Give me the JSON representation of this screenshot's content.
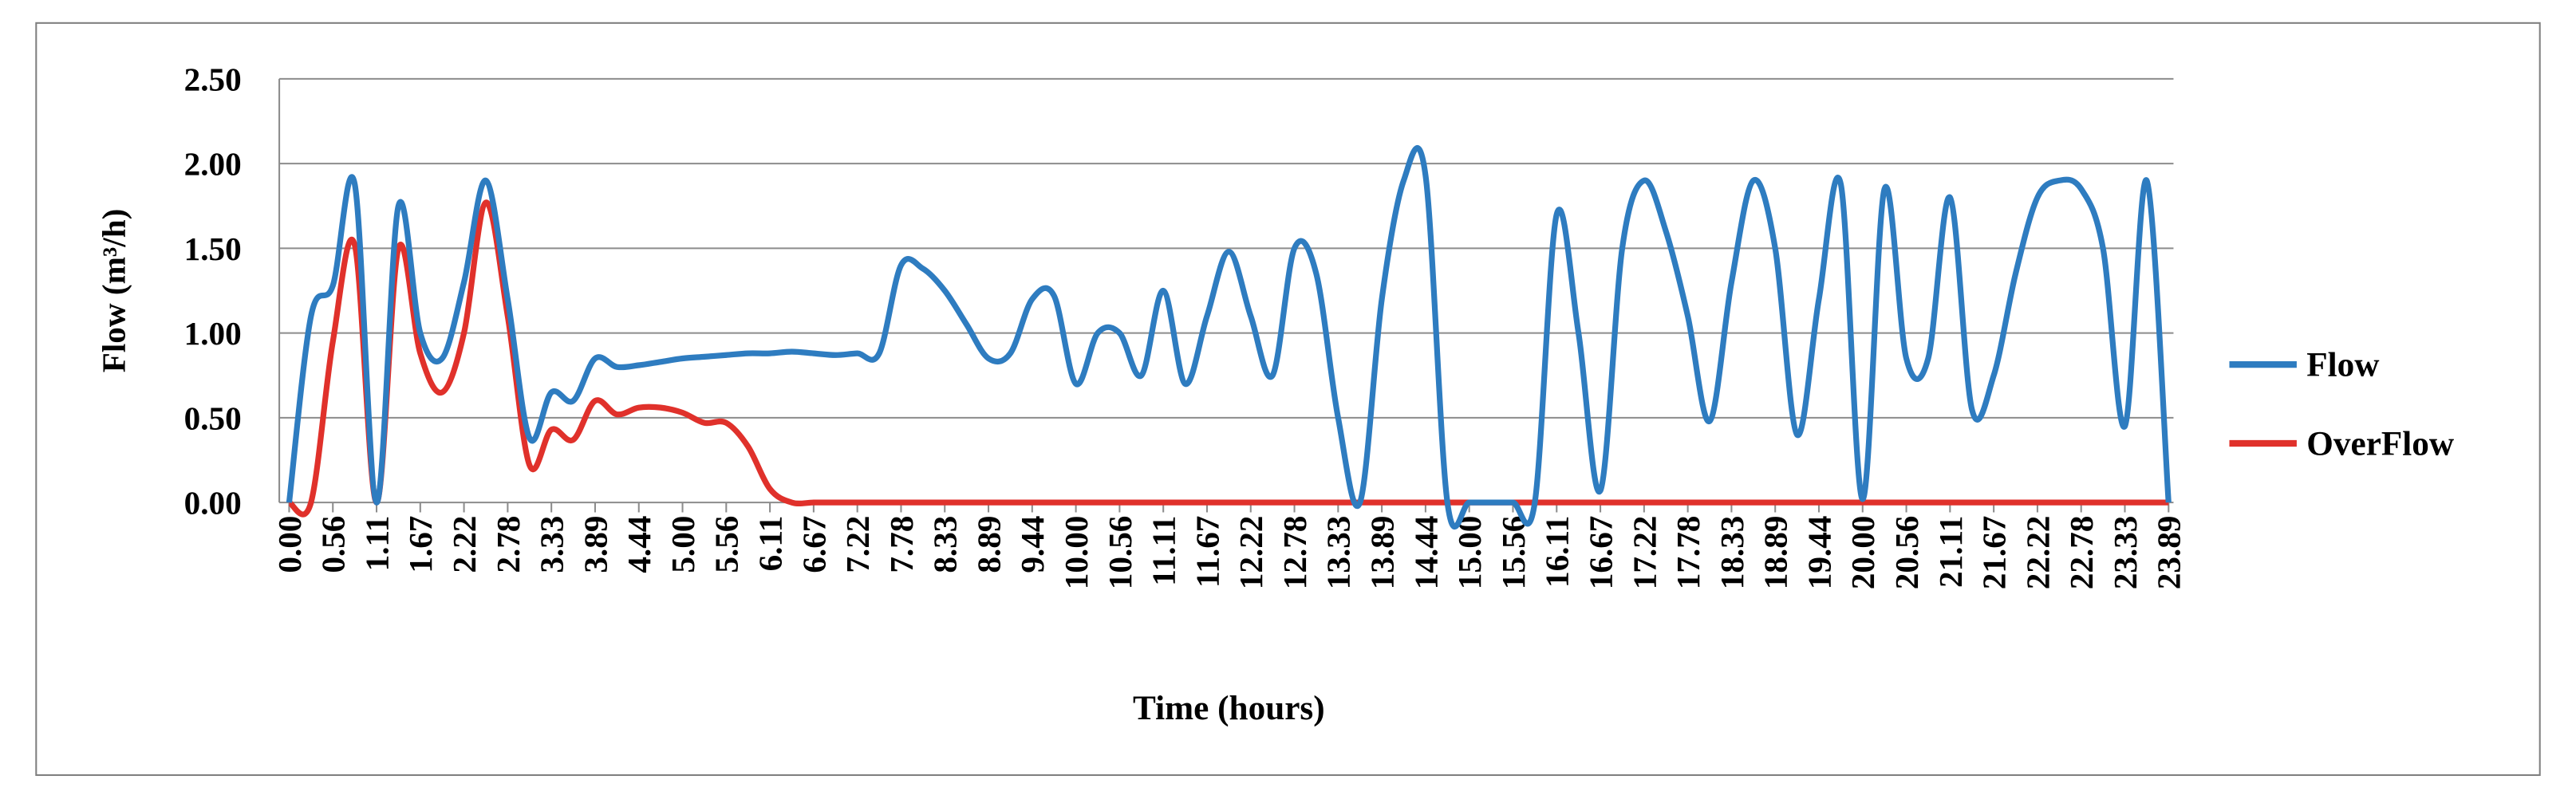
{
  "chart_data": {
    "type": "line",
    "x_label": "Time (hours)",
    "y_label": "Flow (m³/h)",
    "categories": [
      "0.00",
      null,
      "0.56",
      null,
      "1.11",
      null,
      "1.67",
      null,
      "2.22",
      null,
      "2.78",
      null,
      "3.33",
      null,
      "3.89",
      null,
      "4.44",
      null,
      "5.00",
      null,
      "5.56",
      null,
      "6.11",
      null,
      "6.67",
      null,
      "7.22",
      null,
      "7.78",
      null,
      "8.33",
      null,
      "8.89",
      null,
      "9.44",
      null,
      "10.00",
      null,
      "10.56",
      null,
      "11.11",
      null,
      "11.67",
      null,
      "12.22",
      null,
      "12.78",
      null,
      "13.33",
      null,
      "13.89",
      null,
      "14.44",
      null,
      "15.00",
      null,
      "15.56",
      null,
      "16.11",
      null,
      "16.67",
      null,
      "17.22",
      null,
      "17.78",
      null,
      "18.33",
      null,
      "18.89",
      null,
      "19.44",
      null,
      "20.00",
      null,
      "20.56",
      null,
      "21.11",
      null,
      "21.67",
      null,
      "22.22",
      null,
      "22.78",
      null,
      "23.33",
      null,
      "23.89"
    ],
    "series": [
      {
        "name": "Flow",
        "color": "#2e7cc0",
        "values": [
          0,
          1.1,
          1.28,
          1.88,
          0,
          1.75,
          1.0,
          0.85,
          1.3,
          1.9,
          1.2,
          0.38,
          0.65,
          0.6,
          0.85,
          0.8,
          0.81,
          0.83,
          0.85,
          0.86,
          0.87,
          0.88,
          0.88,
          0.89,
          0.88,
          0.87,
          0.88,
          0.88,
          1.4,
          1.38,
          1.25,
          1.05,
          0.85,
          0.88,
          1.2,
          1.22,
          0.7,
          1.0,
          1.0,
          0.75,
          1.25,
          0.7,
          1.1,
          1.48,
          1.1,
          0.75,
          1.5,
          1.35,
          0.5,
          0,
          1.2,
          1.9,
          1.93,
          0,
          0,
          0,
          0,
          0,
          1.7,
          1.0,
          0.07,
          1.5,
          1.9,
          1.6,
          1.1,
          0.48,
          1.3,
          1.9,
          1.5,
          0.4,
          1.2,
          1.88,
          0.02,
          1.85,
          0.85,
          0.85,
          1.8,
          0.55,
          0.75,
          1.35,
          1.8,
          1.9,
          1.85,
          1.5,
          0.45,
          1.9,
          0
        ]
      },
      {
        "name": "OverFlow",
        "color": "#e0312b",
        "values": [
          0,
          0,
          0.95,
          1.52,
          0,
          1.5,
          0.88,
          0.65,
          1.0,
          1.77,
          1.1,
          0.22,
          0.43,
          0.37,
          0.6,
          0.52,
          0.56,
          0.56,
          0.53,
          0.47,
          0.47,
          0.33,
          0.08,
          0,
          0,
          0,
          0,
          0,
          0,
          0,
          0,
          0,
          0,
          0,
          0,
          0,
          0,
          0,
          0,
          0,
          0,
          0,
          0,
          0,
          0,
          0,
          0,
          0,
          0,
          0,
          0,
          0,
          0,
          0,
          0,
          0,
          0,
          0,
          0,
          0,
          0,
          0,
          0,
          0,
          0,
          0,
          0,
          0,
          0,
          0,
          0,
          0,
          0,
          0,
          0,
          0,
          0,
          0,
          0,
          0,
          0,
          0,
          0,
          0,
          0,
          0,
          0
        ]
      }
    ],
    "ylim": [
      0,
      2.5
    ],
    "yticks": [
      {
        "value": 0,
        "label": "0.00"
      },
      {
        "value": 0.5,
        "label": "0.50"
      },
      {
        "value": 1,
        "label": "1.00"
      },
      {
        "value": 1.5,
        "label": "1.50"
      },
      {
        "value": 2,
        "label": "2.00"
      },
      {
        "value": 2.5,
        "label": "2.50"
      }
    ],
    "grid": true,
    "legend": "right",
    "smooth": true
  }
}
